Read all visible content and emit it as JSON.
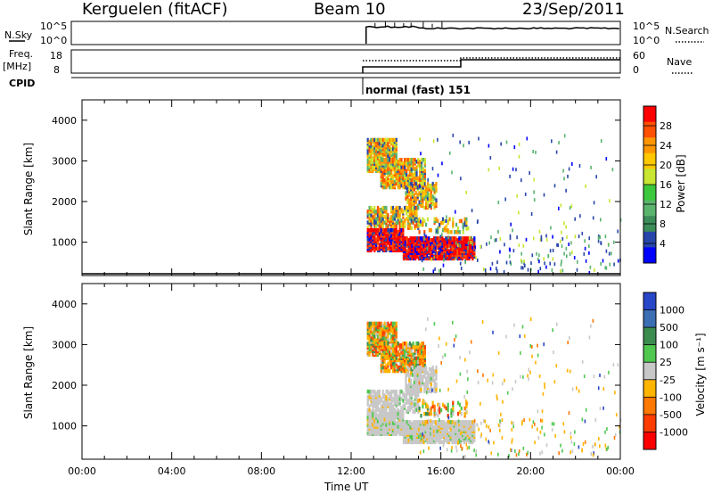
{
  "header": {
    "station": "Kerguelen (fitACF)",
    "beam": "Beam 10",
    "date": "23/Sep/2011"
  },
  "status_panels": {
    "nsky_label": "N.Sky",
    "nsky_ticks": [
      "10^5",
      "10^0"
    ],
    "nsearch_label": "N.Search",
    "freq_label_1": "Freq.",
    "freq_label_2": "[MHz]",
    "freq_ticks": [
      "18",
      "8"
    ],
    "nave_label": "Nave",
    "nave_ticks": [
      "60",
      "0"
    ],
    "cpid_label": "CPID",
    "cpid_text": "normal (fast) 151"
  },
  "chart_data": [
    {
      "type": "heatmap",
      "name": "power",
      "ylabel": "Slant Range [km]",
      "xlabel": "Time UT",
      "yticks": [
        "4000",
        "3000",
        "2000",
        "1000"
      ],
      "ylim": [
        180,
        4500
      ],
      "xlim": [
        "00:00",
        "24:00"
      ],
      "colorbar": {
        "label": "Power [dB]",
        "ticks": [
          "28",
          "24",
          "20",
          "16",
          "12",
          "8",
          "4"
        ],
        "colors": [
          "#ff0000",
          "#ff5000",
          "#ff9600",
          "#ffc800",
          "#c8e632",
          "#3cc83c",
          "#5ab46e",
          "#3c8c5a",
          "#2846aa",
          "#0000ff"
        ]
      },
      "data_start": "12:40"
    },
    {
      "type": "heatmap",
      "name": "velocity",
      "ylabel": "Slant Range [km]",
      "xlabel": "Time UT",
      "yticks": [
        "4000",
        "3000",
        "2000",
        "1000"
      ],
      "ylim": [
        180,
        4500
      ],
      "xlim": [
        "00:00",
        "24:00"
      ],
      "colorbar": {
        "label": "Velocity [m s⁻¹]",
        "ticks": [
          "1000",
          "500",
          "100",
          "25",
          "-25",
          "-100",
          "-500",
          "-1000"
        ],
        "colors": [
          "#2846c8",
          "#3c6eb4",
          "#3c8c50",
          "#50c850",
          "#c8c8c8",
          "#ffb400",
          "#ff7800",
          "#ff3c00",
          "#ff0000"
        ]
      },
      "data_start": "12:40"
    }
  ],
  "time_axis": {
    "ticks": [
      "00:00",
      "04:00",
      "08:00",
      "12:00",
      "16:00",
      "20:00",
      "00:00"
    ],
    "label": "Time UT"
  }
}
